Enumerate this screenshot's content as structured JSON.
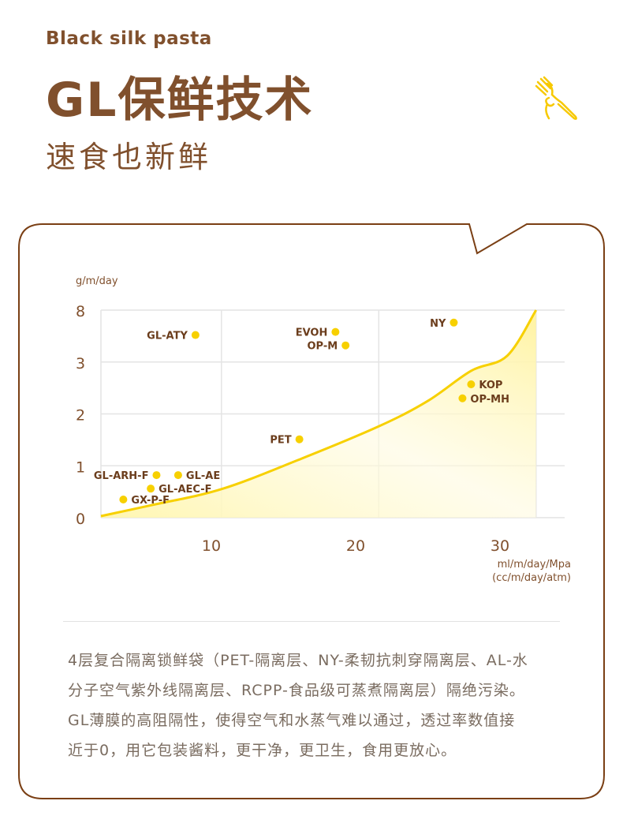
{
  "header": {
    "eyebrow": "Black silk pasta",
    "title": "GL保鲜技术",
    "subtitle": "速食也新鲜"
  },
  "colors": {
    "brand_brown": "#80502d",
    "accent_yellow": "#f7d000",
    "border_brown": "#7a3f14"
  },
  "chart_data": {
    "type": "scatter",
    "ylabel": "g/m/day",
    "xlabel_lines": [
      "ml/m/day/Mpa",
      "(cc/m/day/atm)"
    ],
    "y_ticks": [
      "0",
      "1",
      "2",
      "3",
      "8"
    ],
    "x_ticks": [
      10,
      20,
      30
    ],
    "xlim": [
      2.35,
      34.5
    ],
    "grid": true,
    "points": [
      {
        "label": "GL-ATY",
        "x": 8.9,
        "y": 5.6,
        "side": "left"
      },
      {
        "label": "EVOH",
        "x": 18.6,
        "y": 5.9,
        "side": "left"
      },
      {
        "label": "OP-M",
        "x": 19.3,
        "y": 4.6,
        "side": "left"
      },
      {
        "label": "NY",
        "x": 26.8,
        "y": 6.8,
        "side": "left"
      },
      {
        "label": "KOP",
        "x": 28.0,
        "y": 2.57,
        "side": "right"
      },
      {
        "label": "OP-MH",
        "x": 27.4,
        "y": 2.3,
        "side": "right"
      },
      {
        "label": "PET",
        "x": 16.1,
        "y": 1.51,
        "side": "left"
      },
      {
        "label": "GL-ARH-F",
        "x": 6.2,
        "y": 0.82,
        "side": "left"
      },
      {
        "label": "GL-AE",
        "x": 7.7,
        "y": 0.82,
        "side": "right"
      },
      {
        "label": "GL-AEC-F",
        "x": 5.8,
        "y": 0.56,
        "side": "right"
      },
      {
        "label": "GX-P-F",
        "x": 3.9,
        "y": 0.35,
        "side": "right"
      }
    ],
    "curve": [
      [
        2.35,
        0.03
      ],
      [
        6,
        0.25
      ],
      [
        10.7,
        0.55
      ],
      [
        16,
        1.11
      ],
      [
        21.6,
        1.76
      ],
      [
        25,
        2.25
      ],
      [
        28,
        2.83
      ],
      [
        30.5,
        3.6
      ],
      [
        32.5,
        8
      ]
    ]
  },
  "description": [
    "4层复合隔离锁鲜袋（PET-隔离层、NY-柔韧抗刺穿隔离层、AL-水",
    "分子空气紫外线隔离层、RCPP-食品级可蒸煮隔离层）隔绝污染。",
    "GL薄膜的高阻隔性，使得空气和水蒸气难以通过，透过率数值接",
    "近于0，用它包装酱料，更干净，更卫生，食用更放心。"
  ]
}
